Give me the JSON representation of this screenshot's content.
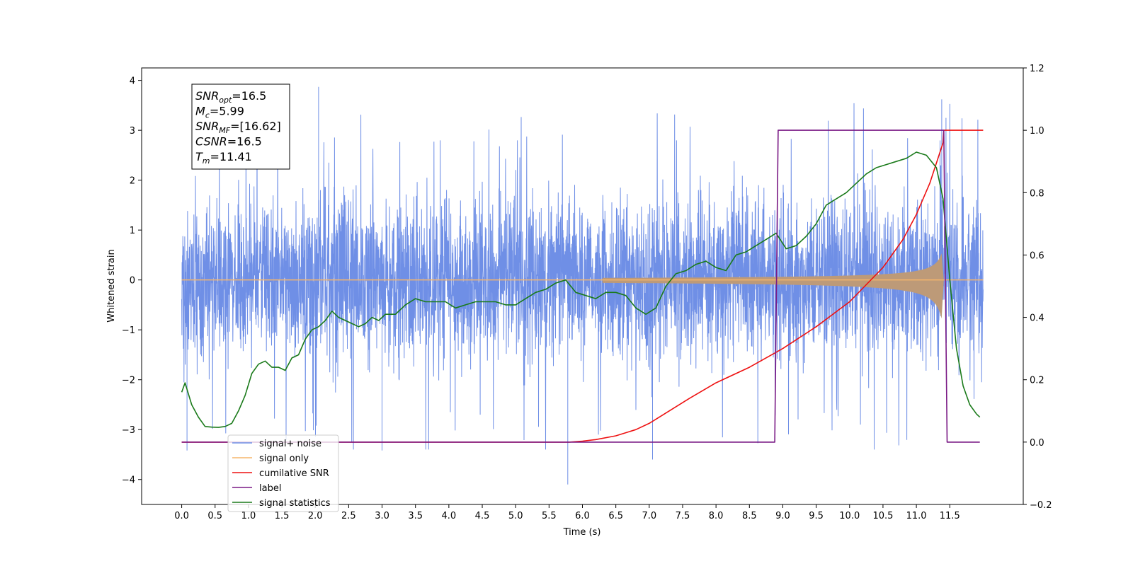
{
  "chart_data": {
    "type": "line",
    "xlabel": "Time (s)",
    "ylabel": "Whitened strain",
    "xlim": [
      -0.6,
      12.6
    ],
    "ylim": [
      -4.5,
      4.25
    ],
    "ylim_right": [
      -0.2,
      1.2
    ],
    "x_ticks": [
      "0.0",
      "0.5",
      "1.0",
      "1.5",
      "2.0",
      "2.5",
      "3.0",
      "3.5",
      "4.0",
      "4.5",
      "5.0",
      "5.5",
      "6.0",
      "6.5",
      "7.0",
      "7.5",
      "8.0",
      "8.5",
      "9.0",
      "9.5",
      "10.0",
      "10.5",
      "11.0",
      "11.5"
    ],
    "y_ticks_left": [
      "4",
      "3",
      "2",
      "1",
      "0",
      "−1",
      "−2",
      "−3",
      "−4"
    ],
    "y_ticks_right": [
      "1.2",
      "1.0",
      "0.8",
      "0.6",
      "0.4",
      "0.2",
      "0.0",
      "−0.2"
    ],
    "annotation": [
      {
        "name": "SNR",
        "sub": "opt",
        "value": "=16.5"
      },
      {
        "name": "M",
        "sub": "c",
        "value": "=5.99"
      },
      {
        "name": "SNR",
        "sub": "MF",
        "value": "=[16.62]"
      },
      {
        "name": "CSNR",
        "sub": "",
        "value": "=16.5"
      },
      {
        "name": "T",
        "sub": "m",
        "value": "=11.41"
      }
    ],
    "legend": {
      "placement": "lower-left",
      "entries": [
        "signal+ noise",
        "signal only",
        "cumilative SNR",
        "label",
        "signal statistics"
      ]
    },
    "series": [
      {
        "name": "signal+ noise",
        "axis": "left",
        "color": "#6f8fe6",
        "kind": "noise",
        "x_range": [
          0,
          12.0
        ],
        "typical_envelope": [
          -2.0,
          2.1
        ],
        "peak_max": 3.87,
        "peak_min": -4.1
      },
      {
        "name": "signal only",
        "axis": "left",
        "color": "#f5b56b",
        "kind": "chirp",
        "start": 6.3,
        "merger": 11.41,
        "peak_amplitude": 1.0
      },
      {
        "name": "cumilative SNR",
        "axis": "right",
        "color": "#ee1111",
        "x": [
          0.0,
          5.0,
          5.5,
          5.8,
          6.0,
          6.2,
          6.5,
          6.8,
          7.0,
          7.3,
          7.6,
          8.0,
          8.5,
          9.0,
          9.5,
          10.0,
          10.5,
          10.8,
          11.0,
          11.2,
          11.4,
          11.41,
          12.0
        ],
        "y": [
          0.0,
          0.0,
          0.0,
          0.0,
          0.003,
          0.008,
          0.02,
          0.04,
          0.06,
          0.1,
          0.14,
          0.19,
          0.24,
          0.3,
          0.37,
          0.45,
          0.56,
          0.65,
          0.73,
          0.83,
          0.96,
          1.0,
          1.0
        ]
      },
      {
        "name": "label",
        "axis": "right",
        "color": "#7a1a85",
        "x": [
          0.0,
          8.88,
          8.93,
          11.41,
          11.46,
          11.95
        ],
        "y": [
          0.0,
          0.0,
          1.0,
          1.0,
          0.0,
          0.0
        ]
      },
      {
        "name": "signal statistics",
        "axis": "right",
        "color": "#1a7a1a",
        "x": [
          0.0,
          0.05,
          0.15,
          0.25,
          0.35,
          0.45,
          0.55,
          0.65,
          0.75,
          0.85,
          0.95,
          1.05,
          1.15,
          1.25,
          1.35,
          1.45,
          1.55,
          1.65,
          1.75,
          1.85,
          1.95,
          2.05,
          2.15,
          2.25,
          2.35,
          2.45,
          2.55,
          2.65,
          2.75,
          2.85,
          2.95,
          3.05,
          3.2,
          3.35,
          3.5,
          3.65,
          3.8,
          3.95,
          4.1,
          4.25,
          4.4,
          4.55,
          4.7,
          4.85,
          5.0,
          5.15,
          5.3,
          5.45,
          5.6,
          5.75,
          5.9,
          6.05,
          6.2,
          6.35,
          6.5,
          6.65,
          6.8,
          6.95,
          7.1,
          7.25,
          7.4,
          7.55,
          7.7,
          7.85,
          8.0,
          8.15,
          8.3,
          8.45,
          8.6,
          8.75,
          8.9,
          9.05,
          9.2,
          9.35,
          9.5,
          9.65,
          9.8,
          9.95,
          10.1,
          10.25,
          10.4,
          10.55,
          10.7,
          10.85,
          11.0,
          11.15,
          11.3,
          11.4,
          11.5,
          11.6,
          11.7,
          11.8,
          11.9,
          11.95
        ],
        "y": [
          0.16,
          0.19,
          0.12,
          0.08,
          0.05,
          0.048,
          0.047,
          0.05,
          0.06,
          0.1,
          0.15,
          0.22,
          0.25,
          0.26,
          0.24,
          0.24,
          0.23,
          0.27,
          0.28,
          0.33,
          0.36,
          0.37,
          0.39,
          0.42,
          0.4,
          0.39,
          0.38,
          0.37,
          0.38,
          0.4,
          0.39,
          0.41,
          0.41,
          0.44,
          0.46,
          0.45,
          0.45,
          0.45,
          0.43,
          0.44,
          0.45,
          0.45,
          0.45,
          0.44,
          0.44,
          0.46,
          0.48,
          0.49,
          0.51,
          0.52,
          0.48,
          0.47,
          0.46,
          0.48,
          0.48,
          0.47,
          0.43,
          0.41,
          0.43,
          0.5,
          0.54,
          0.55,
          0.57,
          0.58,
          0.56,
          0.55,
          0.6,
          0.61,
          0.63,
          0.65,
          0.67,
          0.62,
          0.63,
          0.66,
          0.7,
          0.76,
          0.78,
          0.8,
          0.83,
          0.86,
          0.88,
          0.89,
          0.9,
          0.91,
          0.93,
          0.92,
          0.88,
          0.78,
          0.52,
          0.3,
          0.18,
          0.12,
          0.09,
          0.08
        ]
      }
    ]
  }
}
